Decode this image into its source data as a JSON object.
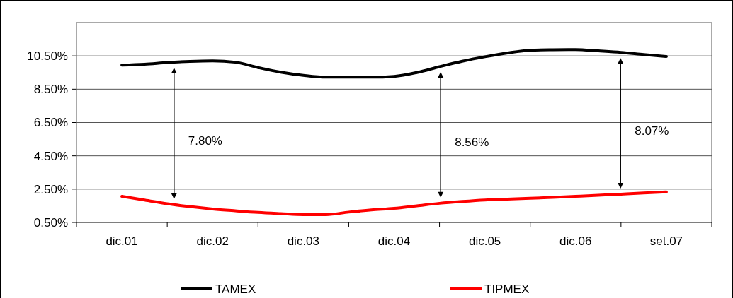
{
  "chart_data": {
    "type": "line",
    "categories": [
      "dic.01",
      null,
      null,
      null,
      "dic.02",
      null,
      null,
      null,
      "dic.03",
      null,
      null,
      null,
      "dic.04",
      null,
      null,
      null,
      "dic.05",
      null,
      null,
      null,
      "dic.06",
      null,
      null,
      null,
      "set.07"
    ],
    "ylim": [
      0.5,
      12.5
    ],
    "yticks": [
      {
        "value": 0.5,
        "label": "0.50%"
      },
      {
        "value": 2.5,
        "label": "2.50%"
      },
      {
        "value": 4.5,
        "label": "4.50%"
      },
      {
        "value": 6.5,
        "label": "6.50%"
      },
      {
        "value": 8.5,
        "label": "8.50%"
      },
      {
        "value": 10.5,
        "label": "10.50%"
      }
    ],
    "grid": "y",
    "legend": "bottom",
    "line_style": "solid",
    "series": [
      {
        "name": "TAMEX",
        "color": "#000000",
        "values": [
          9.95,
          10.0,
          10.1,
          10.17,
          10.2,
          10.12,
          9.8,
          9.52,
          9.33,
          9.22,
          9.22,
          9.22,
          9.27,
          9.5,
          9.85,
          10.18,
          10.45,
          10.68,
          10.84,
          10.87,
          10.88,
          10.8,
          10.71,
          10.58,
          10.46
        ]
      },
      {
        "name": "TIPMEX",
        "color": "#ff0000",
        "values": [
          2.07,
          1.85,
          1.62,
          1.45,
          1.31,
          1.2,
          1.1,
          1.03,
          0.97,
          0.97,
          1.12,
          1.25,
          1.35,
          1.5,
          1.65,
          1.76,
          1.85,
          1.9,
          1.95,
          2.01,
          2.07,
          2.13,
          2.2,
          2.27,
          2.33
        ]
      }
    ],
    "annotations": [
      "7.80%",
      "8.56%",
      "8.07%"
    ]
  }
}
